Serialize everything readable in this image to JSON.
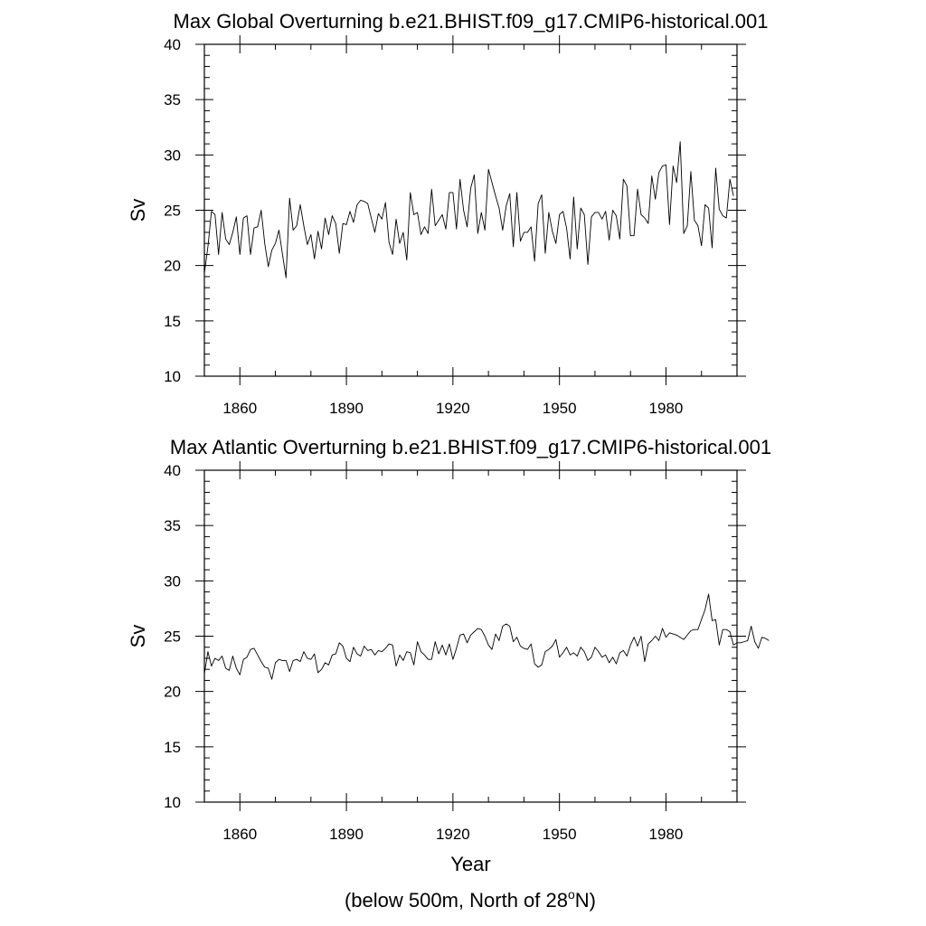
{
  "chart_data": [
    {
      "type": "line",
      "title": "Max Global Overturning b.e21.BHIST.f09_g17.CMIP6-historical.001",
      "ylabel": "Sv",
      "xlabel": "",
      "xlim": [
        1850,
        2000
      ],
      "ylim": [
        10,
        40
      ],
      "xticks": [
        1860,
        1890,
        1920,
        1950,
        1980
      ],
      "yticks": [
        10,
        15,
        20,
        25,
        30,
        35,
        40
      ],
      "x_start": 1850,
      "series": [
        {
          "name": "Max Global Overturning",
          "values": [
            19.3,
            21.7,
            24.9,
            24.6,
            21.0,
            24.8,
            22.4,
            21.9,
            23.0,
            24.4,
            21.0,
            24.3,
            24.5,
            21.0,
            23.4,
            23.5,
            25.0,
            22.0,
            19.9,
            21.4,
            22.0,
            23.2,
            21.0,
            18.9,
            26.1,
            23.2,
            23.6,
            25.5,
            23.6,
            21.9,
            22.8,
            20.6,
            23.1,
            21.5,
            24.3,
            22.8,
            24.5,
            23.8,
            21.1,
            23.8,
            23.7,
            24.9,
            23.9,
            25.5,
            25.9,
            25.8,
            25.6,
            24.3,
            23.0,
            24.7,
            24.2,
            25.7,
            22.1,
            21.0,
            24.2,
            22.0,
            23.0,
            20.5,
            26.6,
            24.6,
            24.8,
            22.8,
            23.5,
            22.9,
            26.9,
            23.6,
            24.1,
            24.6,
            23.3,
            26.6,
            26.6,
            23.3,
            27.8,
            25.0,
            23.5,
            27.0,
            28.2,
            22.9,
            24.8,
            23.2,
            28.7,
            27.5,
            26.3,
            25.2,
            23.2,
            25.4,
            26.5,
            21.7,
            26.6,
            22.2,
            23.0,
            23.0,
            23.5,
            20.4,
            25.6,
            26.4,
            21.1,
            24.8,
            23.1,
            22.0,
            24.6,
            24.9,
            23.4,
            20.6,
            26.2,
            21.5,
            25.2,
            24.6,
            20.1,
            24.4,
            24.8,
            24.8,
            24.2,
            24.9,
            22.3,
            25.0,
            24.5,
            22.4,
            27.8,
            27.2,
            22.7,
            22.7,
            26.9,
            24.6,
            24.3,
            23.8,
            28.1,
            26.0,
            28.4,
            29.0,
            29.1,
            23.7,
            29.0,
            27.5,
            31.2,
            22.9,
            23.6,
            28.5,
            24.1,
            23.6,
            21.8,
            25.5,
            25.2,
            21.6,
            28.8,
            25.1,
            24.5,
            24.3,
            27.8,
            26.3
          ]
        }
      ]
    },
    {
      "type": "line",
      "title": "Max Atlantic Overturning b.e21.BHIST.f09_g17.CMIP6-historical.001",
      "ylabel": "Sv",
      "xlabel": "Year",
      "xlim": [
        1850,
        2000
      ],
      "ylim": [
        10,
        40
      ],
      "xticks": [
        1860,
        1890,
        1920,
        1950,
        1980
      ],
      "yticks": [
        10,
        15,
        20,
        25,
        30,
        35,
        40
      ],
      "x_start": 1850,
      "note": "(below 500m, North of 28",
      "note_sup": "o",
      "note_end": "N)",
      "series": [
        {
          "name": "Max Atlantic Overturning",
          "values": [
            21.6,
            23.6,
            22.3,
            23.0,
            22.8,
            23.2,
            22.1,
            21.9,
            23.2,
            22.1,
            21.5,
            22.9,
            23.1,
            23.8,
            23.9,
            23.3,
            22.7,
            22.2,
            22.1,
            21.1,
            22.6,
            22.9,
            22.8,
            22.8,
            21.8,
            22.8,
            22.9,
            22.7,
            23.6,
            23.0,
            22.9,
            23.4,
            21.7,
            22.0,
            22.6,
            22.4,
            23.3,
            23.4,
            24.4,
            24.1,
            23.0,
            22.7,
            24.0,
            23.4,
            23.2,
            24.1,
            23.7,
            23.8,
            23.3,
            23.7,
            23.6,
            23.9,
            24.3,
            24.2,
            22.3,
            23.3,
            22.8,
            23.6,
            23.5,
            22.4,
            24.5,
            23.6,
            23.3,
            22.9,
            22.9,
            24.5,
            23.4,
            24.2,
            23.3,
            24.3,
            22.9,
            23.9,
            25.1,
            25.2,
            24.4,
            25.1,
            25.4,
            25.7,
            25.6,
            25.0,
            24.2,
            23.8,
            25.2,
            24.6,
            25.9,
            26.1,
            25.9,
            24.5,
            24.9,
            24.1,
            23.9,
            23.8,
            24.3,
            22.5,
            22.2,
            22.4,
            23.6,
            23.8,
            24.1,
            24.7,
            23.1,
            23.5,
            24.0,
            23.3,
            23.5,
            23.2,
            24.0,
            23.6,
            22.8,
            23.1,
            24.0,
            23.6,
            23.1,
            23.3,
            22.6,
            23.1,
            22.5,
            23.5,
            23.7,
            23.2,
            24.2,
            24.9,
            24.1,
            25.0,
            22.7,
            24.3,
            24.6,
            25.0,
            24.6,
            25.7,
            24.9,
            25.3,
            25.2,
            25.1,
            24.9,
            24.7,
            25.1,
            25.5,
            25.6,
            25.6,
            26.5,
            27.4,
            28.8,
            26.4,
            26.5,
            24.2,
            25.6,
            25.6,
            25.4,
            24.2,
            24.4,
            24.4,
            24.5,
            24.6,
            25.9,
            24.5,
            23.9,
            24.9,
            24.8,
            24.6
          ]
        }
      ]
    }
  ]
}
